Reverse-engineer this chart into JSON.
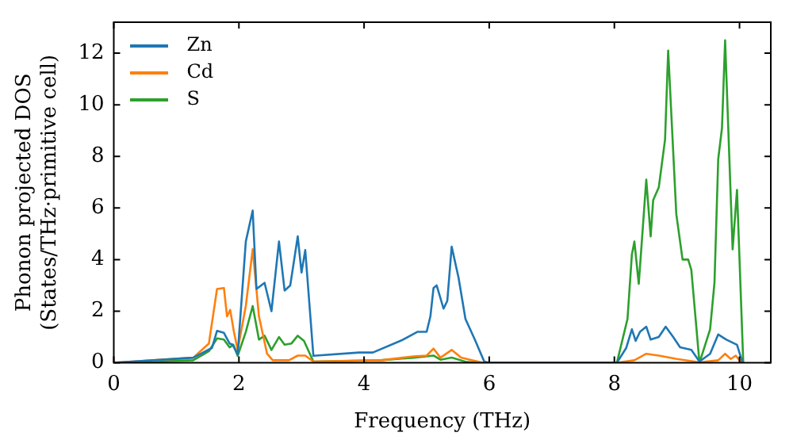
{
  "chart_data": {
    "type": "line",
    "xlabel": "Frequency (THz)",
    "ylabel": "Phonon projected DOS\n(States/THz·primitive cell)",
    "xlim": [
      0,
      10.5
    ],
    "xticks": [
      0,
      2,
      4,
      6,
      8,
      10
    ],
    "ylim": [
      0,
      13.2
    ],
    "yticks": [
      0,
      2,
      4,
      6,
      8,
      10,
      12
    ],
    "grid": false,
    "legend": "top left",
    "marker": "none",
    "line_style": "solid",
    "series": [
      {
        "name": "Zn",
        "color": "#1f77b4",
        "x": [
          0,
          1.27,
          1.57,
          1.65,
          1.76,
          1.85,
          1.9,
          1.98,
          2.11,
          2.22,
          2.28,
          2.41,
          2.52,
          2.64,
          2.73,
          2.82,
          2.94,
          3.0,
          3.06,
          3.19,
          3.92,
          4.14,
          4.6,
          4.85,
          5.0,
          5.06,
          5.11,
          5.16,
          5.27,
          5.33,
          5.4,
          5.51,
          5.62,
          5.77,
          5.92,
          6.0,
          8.04,
          8.19,
          8.28,
          8.34,
          8.41,
          8.51,
          8.58,
          8.71,
          8.82,
          8.94,
          9.05,
          9.23,
          9.36,
          9.53,
          9.66,
          9.79,
          9.96,
          10.05
        ],
        "values": [
          0,
          0.2,
          0.58,
          1.24,
          1.16,
          0.75,
          0.7,
          0.33,
          4.7,
          5.9,
          2.86,
          3.1,
          2.0,
          4.7,
          2.8,
          3.0,
          4.9,
          3.5,
          4.37,
          0.27,
          0.4,
          0.4,
          0.87,
          1.2,
          1.2,
          1.8,
          2.9,
          3.0,
          2.1,
          2.4,
          4.5,
          3.3,
          1.7,
          0.9,
          0.05,
          0,
          0,
          0.58,
          1.3,
          0.85,
          1.2,
          1.4,
          0.9,
          1.0,
          1.4,
          1.0,
          0.6,
          0.5,
          0.05,
          0.35,
          1.1,
          0.9,
          0.7,
          0
        ]
      },
      {
        "name": "Cd",
        "color": "#ff7f0e",
        "x": [
          0,
          1.27,
          1.52,
          1.65,
          1.76,
          1.81,
          1.86,
          1.92,
          1.98,
          2.11,
          2.22,
          2.32,
          2.45,
          2.54,
          2.8,
          2.94,
          3.06,
          3.19,
          4.27,
          4.79,
          5.0,
          5.11,
          5.22,
          5.4,
          5.55,
          5.72,
          5.9,
          8.04,
          8.32,
          8.51,
          8.71,
          9.0,
          9.36,
          9.66,
          9.77,
          9.86,
          9.94,
          10.03
        ],
        "values": [
          0,
          0.2,
          0.75,
          2.86,
          2.9,
          1.8,
          2.05,
          1.2,
          0.5,
          2.2,
          4.4,
          1.8,
          0.35,
          0.1,
          0.1,
          0.28,
          0.28,
          0.05,
          0.1,
          0.25,
          0.28,
          0.55,
          0.2,
          0.5,
          0.2,
          0.1,
          0,
          0,
          0.1,
          0.35,
          0.28,
          0.15,
          0.02,
          0.1,
          0.35,
          0.15,
          0.28,
          0
        ]
      },
      {
        "name": "S",
        "color": "#2ca02c",
        "x": [
          0,
          1.27,
          1.52,
          1.65,
          1.76,
          1.85,
          1.91,
          1.98,
          2.11,
          2.22,
          2.32,
          2.41,
          2.52,
          2.64,
          2.73,
          2.84,
          2.94,
          3.04,
          3.19,
          4.27,
          4.79,
          5.11,
          5.22,
          5.4,
          5.64,
          5.9,
          8.04,
          8.21,
          8.28,
          8.32,
          8.39,
          8.51,
          8.58,
          8.62,
          8.71,
          8.81,
          8.86,
          8.99,
          9.09,
          9.18,
          9.23,
          9.36,
          9.53,
          9.6,
          9.66,
          9.72,
          9.77,
          9.89,
          9.96,
          10.06
        ],
        "values": [
          0,
          0.1,
          0.45,
          0.95,
          0.9,
          0.6,
          0.7,
          0.27,
          1.2,
          2.2,
          0.9,
          1.05,
          0.5,
          1.0,
          0.7,
          0.75,
          1.05,
          0.85,
          0.05,
          0.1,
          0.2,
          0.28,
          0.12,
          0.2,
          0.03,
          0,
          0,
          1.7,
          4.2,
          4.7,
          3.06,
          7.1,
          4.9,
          6.3,
          6.8,
          8.65,
          12.1,
          5.76,
          4.0,
          4.0,
          3.6,
          0,
          1.3,
          3.1,
          7.9,
          9.1,
          12.5,
          4.4,
          6.7,
          0
        ]
      }
    ]
  }
}
